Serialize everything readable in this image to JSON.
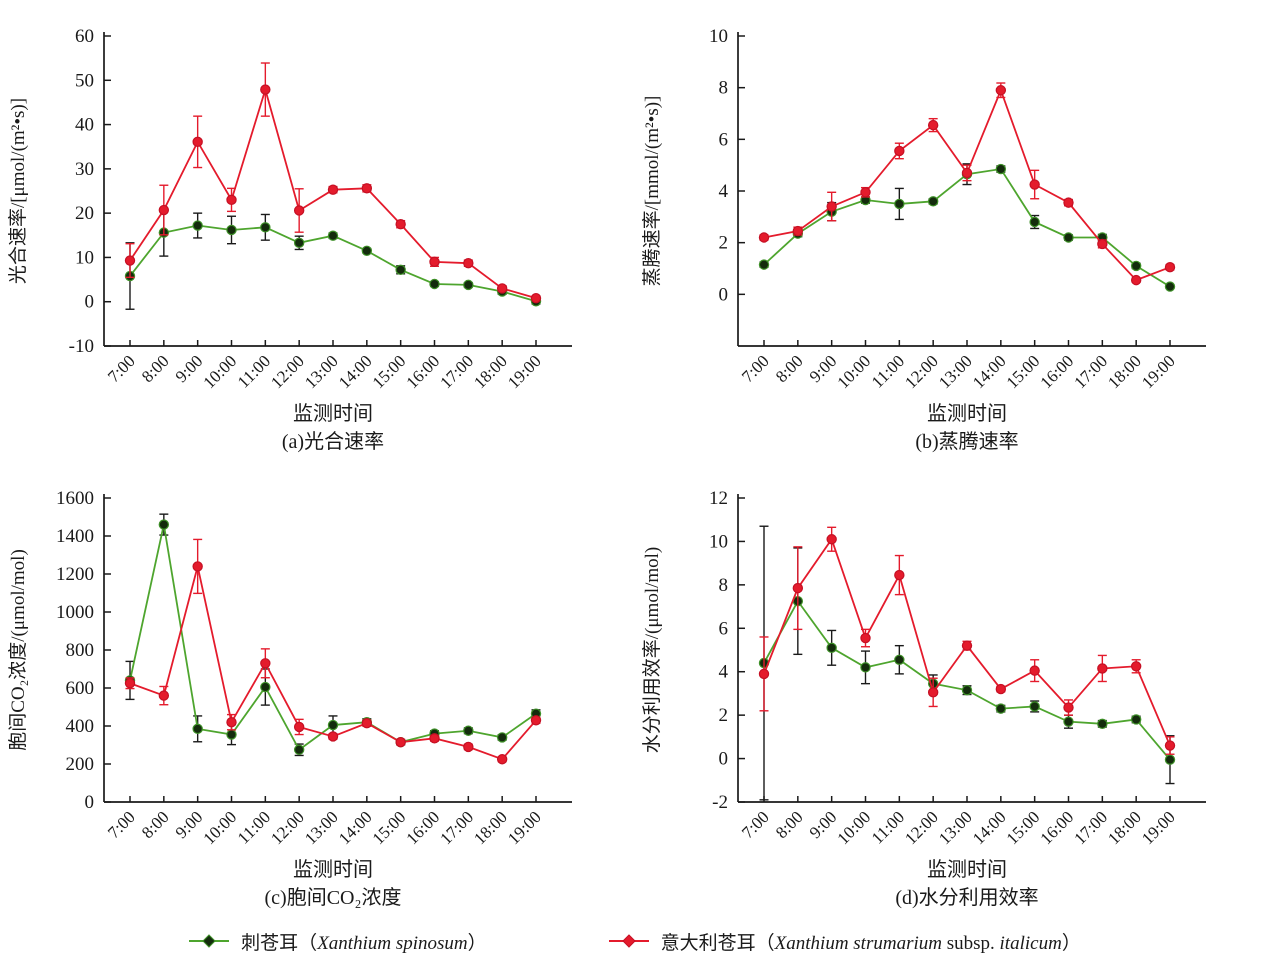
{
  "page": {
    "background": "#ffffff",
    "text_color": "#1a1a1a"
  },
  "legend": {
    "items": [
      {
        "key": "spinosum",
        "line_color": "#4ea52e",
        "marker_fill": "#142c0d",
        "marker_stroke": "#3d8f27",
        "err_color": "#1a1a1a",
        "label_parts": [
          {
            "text": "刺苍耳（",
            "italic": false
          },
          {
            "text": "Xanthium spinosum",
            "italic": true
          },
          {
            "text": "）",
            "italic": false
          }
        ]
      },
      {
        "key": "italicum",
        "line_color": "#e41b2c",
        "marker_fill": "#e41b2c",
        "marker_stroke": "#c51024",
        "err_color": "#e41b2c",
        "label_parts": [
          {
            "text": "意大利苍耳（",
            "italic": false
          },
          {
            "text": "Xanthium strumarium",
            "italic": true
          },
          {
            "text": " subsp. ",
            "italic": false
          },
          {
            "text": "italicum",
            "italic": true
          },
          {
            "text": "）",
            "italic": false
          }
        ]
      }
    ]
  },
  "chart_data": [
    {
      "id": "a",
      "type": "line",
      "caption": "(a)光合速率",
      "ylabel": "光合速率/[μmol/(m²•s)]",
      "xlabel": "监测时间",
      "categories": [
        "7:00",
        "8:00",
        "9:00",
        "10:00",
        "11:00",
        "12:00",
        "13:00",
        "14:00",
        "15:00",
        "16:00",
        "17:00",
        "18:00",
        "19:00"
      ],
      "ylim": [
        -10,
        60
      ],
      "yticks": [
        -10,
        0,
        10,
        20,
        30,
        40,
        50,
        60
      ],
      "grid": false,
      "series": [
        {
          "name": "刺苍耳 (Xanthium spinosum)",
          "values": [
            5.8,
            15.6,
            17.2,
            16.2,
            16.8,
            13.3,
            14.9,
            11.5,
            7.2,
            4.0,
            3.8,
            2.3,
            0.1
          ],
          "errors": [
            7.5,
            5.3,
            2.8,
            3.1,
            2.9,
            1.5,
            0.6,
            0.5,
            0.9,
            0.5,
            0.5,
            0.6,
            0.6
          ]
        },
        {
          "name": "意大利苍耳 (Xanthium strumarium subsp. italicum)",
          "values": [
            9.3,
            20.7,
            36.1,
            23.0,
            47.9,
            20.6,
            25.3,
            25.6,
            17.5,
            9.0,
            8.7,
            3.0,
            0.8
          ],
          "errors": [
            3.8,
            5.6,
            5.8,
            2.6,
            6.0,
            4.9,
            0.7,
            0.8,
            0.8,
            1.0,
            0.7,
            0.6,
            0.5
          ]
        }
      ]
    },
    {
      "id": "b",
      "type": "line",
      "caption": "(b)蒸腾速率",
      "ylabel": "蒸腾速率/[mmol/(m²•s)]",
      "xlabel": "监测时间",
      "categories": [
        "7:00",
        "8:00",
        "9:00",
        "10:00",
        "11:00",
        "12:00",
        "13:00",
        "14:00",
        "15:00",
        "16:00",
        "17:00",
        "18:00",
        "19:00"
      ],
      "ylim": [
        -2,
        10
      ],
      "yticks": [
        0,
        2,
        4,
        6,
        8,
        10
      ],
      "grid": false,
      "series": [
        {
          "name": "刺苍耳 (Xanthium spinosum)",
          "values": [
            1.15,
            2.35,
            3.2,
            3.65,
            3.5,
            3.6,
            4.65,
            4.85,
            2.8,
            2.2,
            2.2,
            1.1,
            0.3
          ],
          "errors": [
            0.1,
            0.12,
            0.35,
            0.12,
            0.6,
            0.1,
            0.4,
            0.12,
            0.25,
            0.1,
            0.12,
            0.1,
            0.06
          ]
        },
        {
          "name": "意大利苍耳 (Xanthium strumarium subsp. italicum)",
          "values": [
            2.2,
            2.45,
            3.4,
            3.95,
            5.55,
            6.55,
            4.7,
            7.9,
            4.25,
            3.55,
            1.95,
            0.55,
            1.05
          ],
          "errors": [
            0.1,
            0.15,
            0.55,
            0.18,
            0.3,
            0.25,
            0.3,
            0.28,
            0.55,
            0.12,
            0.15,
            0.08,
            0.1
          ]
        }
      ]
    },
    {
      "id": "c",
      "type": "line",
      "caption": "(c)胞间CO₂浓度",
      "ylabel": "胞间CO₂浓度/(μmol/mol)",
      "xlabel": "监测时间",
      "categories": [
        "7:00",
        "8:00",
        "9:00",
        "10:00",
        "11:00",
        "12:00",
        "13:00",
        "14:00",
        "15:00",
        "16:00",
        "17:00",
        "18:00",
        "19:00"
      ],
      "ylim": [
        0,
        1600
      ],
      "yticks": [
        0,
        200,
        400,
        600,
        800,
        1000,
        1200,
        1400,
        1600
      ],
      "grid": false,
      "series": [
        {
          "name": "刺苍耳 (Xanthium spinosum)",
          "values": [
            640,
            1460,
            385,
            355,
            605,
            275,
            405,
            420,
            315,
            360,
            375,
            340,
            465
          ],
          "errors": [
            100,
            55,
            68,
            53,
            95,
            30,
            48,
            18,
            14,
            15,
            15,
            14,
            20
          ]
        },
        {
          "name": "意大利苍耳 (Xanthium strumarium subsp. italicum)",
          "values": [
            625,
            560,
            1240,
            420,
            730,
            395,
            345,
            415,
            315,
            335,
            290,
            225,
            430
          ],
          "errors": [
            28,
            48,
            142,
            40,
            76,
            40,
            14,
            16,
            14,
            14,
            14,
            12,
            15
          ]
        }
      ]
    },
    {
      "id": "d",
      "type": "line",
      "caption": "(d)水分利用效率",
      "ylabel": "水分利用效率/(μmol/mol)",
      "xlabel": "监测时间",
      "categories": [
        "7:00",
        "8:00",
        "9:00",
        "10:00",
        "11:00",
        "12:00",
        "13:00",
        "14:00",
        "15:00",
        "16:00",
        "17:00",
        "18:00",
        "19:00"
      ],
      "ylim": [
        -2,
        12
      ],
      "yticks": [
        -2,
        0,
        2,
        4,
        6,
        8,
        10,
        12
      ],
      "grid": false,
      "series": [
        {
          "name": "刺苍耳 (Xanthium spinosum)",
          "values": [
            4.4,
            7.25,
            5.1,
            4.2,
            4.55,
            3.45,
            3.15,
            2.3,
            2.4,
            1.7,
            1.6,
            1.8,
            -0.05
          ],
          "errors": [
            6.3,
            2.45,
            0.8,
            0.75,
            0.65,
            0.4,
            0.2,
            0.15,
            0.25,
            0.3,
            0.15,
            0.15,
            1.1
          ]
        },
        {
          "name": "意大利苍耳 (Xanthium strumarium subsp. italicum)",
          "values": [
            3.9,
            7.85,
            10.1,
            5.55,
            8.45,
            3.05,
            5.2,
            3.2,
            4.05,
            2.35,
            4.15,
            4.25,
            0.6
          ],
          "errors": [
            1.7,
            1.9,
            0.55,
            0.4,
            0.9,
            0.65,
            0.2,
            0.12,
            0.5,
            0.35,
            0.6,
            0.3,
            0.4
          ]
        }
      ]
    }
  ]
}
